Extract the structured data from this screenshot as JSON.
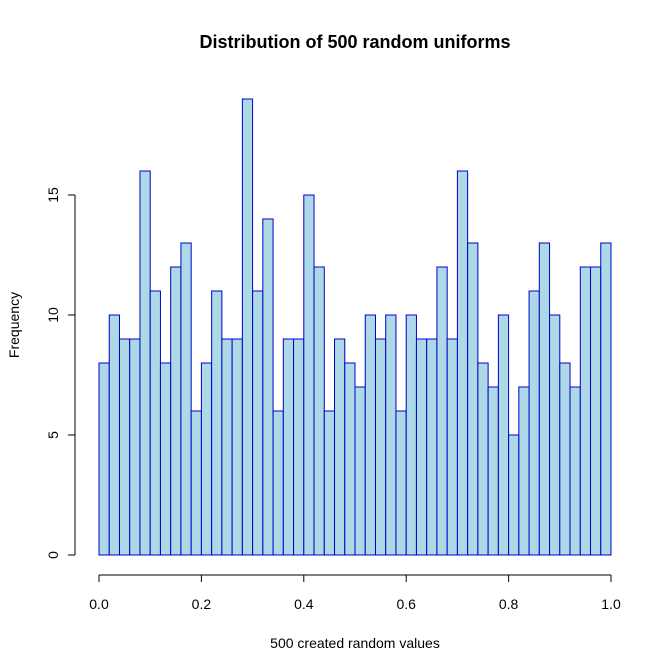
{
  "chart_data": {
    "type": "bar",
    "title": "Distribution of 500 random uniforms",
    "xlabel": "500 created random values",
    "ylabel": "Frequency",
    "xlim": [
      0.0,
      1.0
    ],
    "ylim": [
      0,
      19
    ],
    "bin_width": 0.02,
    "x_ticks": [
      "0.0",
      "0.2",
      "0.4",
      "0.6",
      "0.8",
      "1.0"
    ],
    "y_ticks": [
      "0",
      "5",
      "10",
      "15"
    ],
    "values": [
      8,
      10,
      9,
      9,
      16,
      11,
      8,
      12,
      13,
      6,
      8,
      11,
      9,
      9,
      19,
      11,
      14,
      6,
      9,
      9,
      15,
      12,
      6,
      9,
      8,
      7,
      10,
      9,
      10,
      6,
      10,
      9,
      9,
      12,
      9,
      16,
      13,
      8,
      7,
      10,
      5,
      7,
      11,
      13,
      10,
      8,
      7,
      12,
      12,
      13
    ],
    "fill_color": "#add8e6",
    "border_color": "#0000cd",
    "grid": false
  }
}
